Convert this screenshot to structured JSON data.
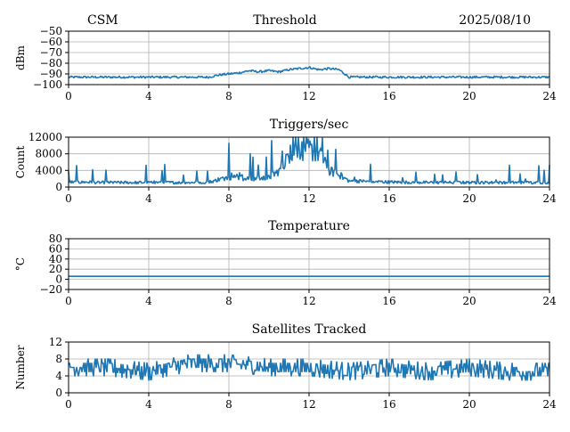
{
  "header": {
    "left": "CSM",
    "center": "Threshold",
    "right": "2025/08/10"
  },
  "colors": {
    "series": "#1f77b4",
    "grid": "#b0b0b0",
    "axis": "#000000"
  },
  "x_ticks": [
    "0",
    "4",
    "8",
    "12",
    "16",
    "20",
    "24"
  ],
  "chart_data": [
    {
      "type": "line",
      "title": "",
      "ylabel": "dBm",
      "xlim": [
        0,
        24
      ],
      "ylim": [
        -100,
        -50
      ],
      "y_ticks": [
        "−50",
        "−60",
        "−70",
        "−80",
        "−90",
        "−100"
      ],
      "y_tick_values": [
        -50,
        -60,
        -70,
        -80,
        -90,
        -100
      ],
      "grid": true,
      "series": [
        {
          "x": [
            0,
            1,
            2,
            3,
            4,
            5,
            6,
            7,
            7.5,
            8,
            8.5,
            9,
            9.5,
            10,
            10.5,
            11,
            11.5,
            12,
            12.5,
            13,
            13.5,
            14,
            15,
            16,
            17,
            18,
            19,
            20,
            21,
            22,
            23,
            24
          ],
          "values": [
            -93,
            -93,
            -93,
            -93,
            -93,
            -93,
            -93,
            -93,
            -91,
            -90,
            -89,
            -87,
            -88,
            -87,
            -88,
            -86,
            -85,
            -84,
            -86,
            -85,
            -86,
            -93,
            -93,
            -93,
            -93,
            -93,
            -93,
            -93,
            -93,
            -93,
            -93,
            -93
          ]
        }
      ]
    },
    {
      "type": "line",
      "title": "Triggers/sec",
      "ylabel": "Count",
      "xlim": [
        0,
        24
      ],
      "ylim": [
        0,
        12000
      ],
      "y_ticks": [
        "0",
        "4000",
        "8000",
        "12000"
      ],
      "y_tick_values": [
        0,
        4000,
        8000,
        12000
      ],
      "grid": true,
      "series": [
        {
          "x": [
            0,
            2,
            4,
            6,
            7,
            8,
            9,
            10,
            10.5,
            11,
            11.5,
            12,
            12.5,
            13,
            14,
            16,
            18,
            20,
            22,
            24
          ],
          "values": [
            1200,
            1100,
            1100,
            1100,
            1200,
            2500,
            2000,
            2200,
            4000,
            8000,
            9000,
            9000,
            8000,
            4000,
            1500,
            1200,
            1100,
            1100,
            1100,
            1100
          ]
        }
      ]
    },
    {
      "type": "line",
      "title": "Temperature",
      "ylabel": "°C",
      "xlim": [
        0,
        24
      ],
      "ylim": [
        -20,
        80
      ],
      "y_ticks": [
        "−20",
        "0",
        "20",
        "40",
        "60",
        "80"
      ],
      "y_tick_values": [
        -20,
        0,
        20,
        40,
        60,
        80
      ],
      "grid": true,
      "series": [
        {
          "x": [
            0,
            24
          ],
          "values": [
            6,
            6
          ]
        }
      ]
    },
    {
      "type": "line",
      "title": "Satellites Tracked",
      "ylabel": "Number",
      "xlim": [
        0,
        24
      ],
      "ylim": [
        0,
        12
      ],
      "y_ticks": [
        "0",
        "4",
        "8",
        "12"
      ],
      "y_tick_values": [
        0,
        4,
        8,
        12
      ],
      "grid": true,
      "series": [
        {
          "x": [
            0,
            2,
            4,
            6,
            8,
            10,
            12,
            14,
            16,
            18,
            20,
            22,
            24
          ],
          "values": [
            6,
            6,
            5,
            7,
            7,
            6,
            6,
            5,
            6,
            5,
            6,
            5,
            5
          ]
        }
      ]
    }
  ]
}
